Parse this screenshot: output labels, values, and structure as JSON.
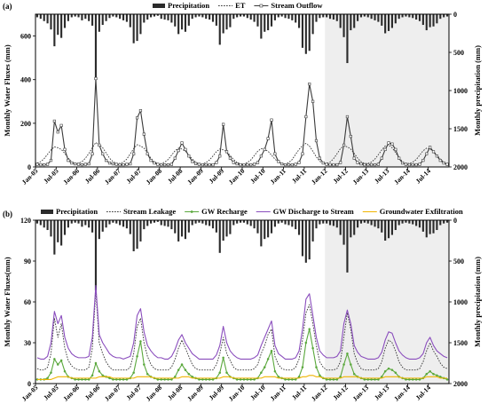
{
  "chart_data": [
    {
      "panel": "(a)",
      "type": "line",
      "ylabel": "Monthly Water Fluxes (mm)",
      "y2label": "Monthly precipitation (mm)",
      "ylim": [
        0,
        700
      ],
      "y2lim": [
        0,
        2000
      ],
      "y2_inverted": true,
      "yticks": [
        "0",
        "200",
        "400",
        "600"
      ],
      "y2ticks": [
        "0",
        "500",
        "1000",
        "1500",
        "2000"
      ],
      "xticks": [
        "Jan-05",
        "Jul-05",
        "Jan-06",
        "Jul-06",
        "Jan-07",
        "Jul-07",
        "Jan-08",
        "Jul-08",
        "Jan-09",
        "Jul-09",
        "Jan-10",
        "Jul-10",
        "Jan-11",
        "Jul-11",
        "Jan-12",
        "Jul-12",
        "Jan-13",
        "Jul-13",
        "Jan-14",
        "Jul-14"
      ],
      "shaded_period": [
        "Jan-12",
        "Dec-14"
      ],
      "legend": [
        "Precipitation",
        "ET",
        "Stream Outflow"
      ],
      "series": [
        {
          "name": "Precipitation",
          "style": "bar-inverted",
          "axis": "y2",
          "values": [
            40,
            60,
            90,
            120,
            200,
            420,
            270,
            310,
            180,
            90,
            40,
            30,
            40,
            80,
            60,
            90,
            150,
            860,
            230,
            140,
            90,
            50,
            30,
            40,
            60,
            80,
            100,
            170,
            380,
            350,
            260,
            110,
            70,
            40,
            30,
            20,
            60,
            70,
            80,
            110,
            160,
            260,
            200,
            230,
            150,
            60,
            40,
            30,
            40,
            60,
            70,
            100,
            150,
            400,
            250,
            200,
            170,
            60,
            40,
            30,
            30,
            50,
            70,
            100,
            160,
            320,
            230,
            210,
            160,
            80,
            40,
            30,
            50,
            60,
            80,
            110,
            180,
            440,
            520,
            480,
            260,
            100,
            50,
            40,
            40,
            60,
            70,
            90,
            180,
            300,
            640,
            210,
            180,
            90,
            40,
            30,
            40,
            60,
            80,
            100,
            150,
            250,
            220,
            180,
            120,
            60,
            40,
            30,
            40,
            50,
            70,
            90,
            140,
            210,
            170,
            160,
            120,
            60,
            40,
            30
          ]
        },
        {
          "name": "ET",
          "style": "dotted",
          "axis": "y",
          "values": [
            18,
            24,
            38,
            58,
            78,
            92,
            88,
            80,
            62,
            40,
            24,
            17,
            17,
            24,
            40,
            62,
            88,
            112,
            102,
            88,
            64,
            40,
            24,
            16,
            16,
            22,
            36,
            60,
            84,
            102,
            96,
            86,
            62,
            40,
            22,
            15,
            15,
            22,
            34,
            54,
            74,
            86,
            82,
            72,
            54,
            36,
            22,
            14,
            14,
            20,
            32,
            50,
            70,
            82,
            78,
            70,
            52,
            34,
            20,
            14,
            14,
            20,
            32,
            52,
            72,
            84,
            80,
            72,
            54,
            36,
            22,
            14,
            14,
            20,
            34,
            58,
            80,
            98,
            108,
            96,
            72,
            46,
            26,
            16,
            16,
            22,
            38,
            60,
            84,
            96,
            92,
            82,
            62,
            40,
            24,
            16,
            16,
            22,
            36,
            56,
            78,
            96,
            100,
            88,
            66,
            42,
            24,
            16,
            16,
            22,
            34,
            54,
            74,
            86,
            82,
            72,
            54,
            36,
            22,
            14
          ]
        },
        {
          "name": "Stream Outflow",
          "style": "line-square",
          "axis": "y",
          "values": [
            12,
            10,
            10,
            12,
            30,
            210,
            160,
            190,
            80,
            30,
            18,
            14,
            12,
            10,
            12,
            14,
            60,
            405,
            100,
            60,
            30,
            18,
            14,
            12,
            10,
            10,
            12,
            14,
            60,
            225,
            258,
            150,
            60,
            30,
            18,
            12,
            10,
            10,
            10,
            12,
            40,
            75,
            110,
            80,
            50,
            25,
            15,
            12,
            10,
            10,
            10,
            10,
            20,
            50,
            195,
            70,
            40,
            20,
            14,
            10,
            10,
            10,
            10,
            12,
            20,
            50,
            80,
            130,
            215,
            60,
            25,
            14,
            10,
            10,
            10,
            12,
            20,
            60,
            230,
            380,
            300,
            120,
            40,
            18,
            12,
            10,
            10,
            10,
            20,
            100,
            230,
            140,
            40,
            20,
            14,
            10,
            10,
            10,
            10,
            12,
            40,
            80,
            110,
            105,
            80,
            40,
            18,
            12,
            10,
            10,
            10,
            12,
            30,
            60,
            90,
            70,
            50,
            30,
            18,
            12
          ]
        }
      ]
    },
    {
      "panel": "(b)",
      "type": "line",
      "ylabel": "Monthly Water Fluxes(mm)",
      "y2label": "Monthly precipitation (mm)",
      "ylim": [
        0,
        120
      ],
      "y2lim": [
        0,
        2000
      ],
      "y2_inverted": true,
      "yticks": [
        "0",
        "30",
        "60",
        "90",
        "120"
      ],
      "y2ticks": [
        "0",
        "500",
        "1000",
        "1500",
        "2000"
      ],
      "xticks": [
        "Jan-05",
        "Jul-05",
        "Jan-06",
        "Jul-06",
        "Jan-07",
        "Jul-07",
        "Jan-08",
        "Jul-08",
        "Jan-09",
        "Jul-09",
        "Jan-10",
        "Jul-10",
        "Jan-11",
        "Jul-11",
        "Jan-12",
        "Jul-12",
        "Jan-13",
        "Jul-13",
        "Jan-14",
        "Jul-14"
      ],
      "shaded_period": [
        "Jan-12",
        "Dec-14"
      ],
      "legend": [
        "Precipitation",
        "Stream Leakage",
        "GW Recharge",
        "GW Discharge to Stream",
        "Groundwater Exfiltration"
      ],
      "series": [
        {
          "name": "Precipitation",
          "style": "bar-inverted",
          "axis": "y2",
          "values": [
            40,
            60,
            90,
            120,
            200,
            420,
            270,
            310,
            180,
            90,
            40,
            30,
            40,
            80,
            60,
            90,
            150,
            860,
            230,
            140,
            90,
            50,
            30,
            40,
            60,
            80,
            100,
            170,
            380,
            350,
            260,
            110,
            70,
            40,
            30,
            20,
            60,
            70,
            80,
            110,
            160,
            260,
            200,
            230,
            150,
            60,
            40,
            30,
            40,
            60,
            70,
            100,
            150,
            400,
            250,
            200,
            170,
            60,
            40,
            30,
            30,
            50,
            70,
            100,
            160,
            320,
            230,
            210,
            160,
            80,
            40,
            30,
            50,
            60,
            80,
            110,
            180,
            440,
            520,
            480,
            260,
            100,
            50,
            40,
            40,
            60,
            70,
            90,
            180,
            300,
            640,
            210,
            180,
            90,
            40,
            30,
            40,
            60,
            80,
            100,
            150,
            250,
            220,
            180,
            120,
            60,
            40,
            30,
            40,
            50,
            70,
            90,
            140,
            210,
            170,
            160,
            120,
            60,
            40,
            30
          ]
        },
        {
          "name": "Stream Leakage",
          "style": "dotted",
          "axis": "y",
          "values": [
            11,
            10,
            10,
            12,
            22,
            48,
            34,
            44,
            26,
            17,
            13,
            11,
            10,
            10,
            10,
            12,
            26,
            68,
            30,
            22,
            16,
            12,
            10,
            10,
            10,
            10,
            10,
            12,
            22,
            42,
            48,
            30,
            20,
            14,
            11,
            10,
            10,
            10,
            10,
            12,
            18,
            26,
            32,
            26,
            20,
            14,
            11,
            10,
            10,
            10,
            10,
            10,
            14,
            22,
            34,
            22,
            17,
            12,
            10,
            10,
            10,
            10,
            10,
            11,
            14,
            22,
            28,
            36,
            40,
            20,
            14,
            11,
            10,
            10,
            10,
            12,
            18,
            32,
            52,
            58,
            44,
            28,
            16,
            12,
            10,
            10,
            10,
            11,
            16,
            34,
            52,
            40,
            22,
            15,
            11,
            10,
            10,
            10,
            10,
            11,
            16,
            26,
            32,
            30,
            24,
            16,
            12,
            10,
            10,
            10,
            10,
            11,
            16,
            24,
            30,
            24,
            20,
            15,
            12,
            11
          ]
        },
        {
          "name": "GW Recharge",
          "style": "line-circle",
          "axis": "y",
          "values": [
            3,
            3,
            3,
            4,
            8,
            18,
            14,
            17,
            9,
            5,
            4,
            3,
            3,
            3,
            3,
            3,
            6,
            15,
            9,
            6,
            5,
            4,
            3,
            3,
            3,
            3,
            3,
            4,
            8,
            20,
            31,
            14,
            7,
            5,
            4,
            3,
            3,
            3,
            3,
            3,
            5,
            10,
            14,
            10,
            7,
            5,
            4,
            3,
            3,
            3,
            3,
            3,
            4,
            8,
            19,
            8,
            5,
            4,
            3,
            3,
            3,
            3,
            3,
            3,
            4,
            8,
            12,
            18,
            24,
            9,
            5,
            4,
            3,
            3,
            3,
            3,
            5,
            12,
            30,
            40,
            26,
            12,
            6,
            4,
            3,
            3,
            3,
            3,
            5,
            14,
            22,
            14,
            7,
            5,
            4,
            3,
            3,
            3,
            3,
            3,
            5,
            9,
            11,
            10,
            8,
            5,
            4,
            3,
            3,
            3,
            3,
            3,
            4,
            7,
            9,
            7,
            6,
            5,
            4,
            3
          ]
        },
        {
          "name": "GW Discharge to Stream",
          "style": "solid",
          "axis": "y",
          "values": [
            19,
            18,
            18,
            20,
            30,
            53,
            44,
            50,
            34,
            26,
            22,
            20,
            19,
            19,
            19,
            20,
            34,
            72,
            36,
            30,
            26,
            22,
            20,
            19,
            19,
            18,
            19,
            20,
            30,
            50,
            55,
            38,
            28,
            24,
            21,
            19,
            19,
            18,
            18,
            20,
            25,
            32,
            36,
            30,
            26,
            22,
            20,
            18,
            18,
            18,
            18,
            18,
            21,
            28,
            42,
            30,
            24,
            21,
            19,
            18,
            18,
            18,
            18,
            19,
            21,
            28,
            34,
            40,
            46,
            28,
            22,
            20,
            18,
            18,
            18,
            19,
            24,
            40,
            62,
            66,
            50,
            34,
            24,
            21,
            19,
            19,
            19,
            20,
            24,
            44,
            54,
            44,
            28,
            23,
            20,
            19,
            18,
            18,
            18,
            19,
            23,
            32,
            38,
            37,
            30,
            24,
            21,
            19,
            18,
            18,
            18,
            19,
            22,
            30,
            34,
            28,
            24,
            22,
            20,
            19
          ]
        },
        {
          "name": "Groundwater Exfiltration",
          "style": "solid",
          "axis": "y",
          "values": [
            3,
            3,
            3,
            3,
            3,
            4,
            5,
            5,
            5,
            5,
            4,
            4,
            4,
            4,
            4,
            4,
            4,
            4,
            5,
            5,
            5,
            5,
            4,
            4,
            4,
            4,
            4,
            4,
            4,
            5,
            5,
            5,
            5,
            5,
            4,
            4,
            4,
            4,
            4,
            4,
            4,
            4,
            5,
            5,
            5,
            4,
            4,
            4,
            4,
            4,
            4,
            4,
            4,
            4,
            5,
            5,
            5,
            4,
            4,
            4,
            4,
            4,
            4,
            4,
            4,
            4,
            5,
            5,
            5,
            5,
            4,
            4,
            4,
            4,
            4,
            4,
            4,
            5,
            5,
            6,
            6,
            5,
            5,
            4,
            4,
            4,
            4,
            4,
            4,
            5,
            5,
            5,
            5,
            5,
            4,
            4,
            4,
            4,
            4,
            4,
            4,
            5,
            5,
            5,
            5,
            5,
            4,
            4,
            4,
            4,
            4,
            4,
            4,
            5,
            5,
            5,
            5,
            4,
            4,
            4
          ]
        }
      ]
    }
  ],
  "colors": {
    "precipitation": "#2b2b2b",
    "et": "#333333",
    "stream_outflow": "#3a3a3a",
    "stream_leakage": "#333333",
    "gw_recharge": "#5aa83c",
    "gw_discharge": "#8a4dbd",
    "exfiltration": "#f0b400",
    "shade": "#eeeeee",
    "axis": "#000000"
  }
}
